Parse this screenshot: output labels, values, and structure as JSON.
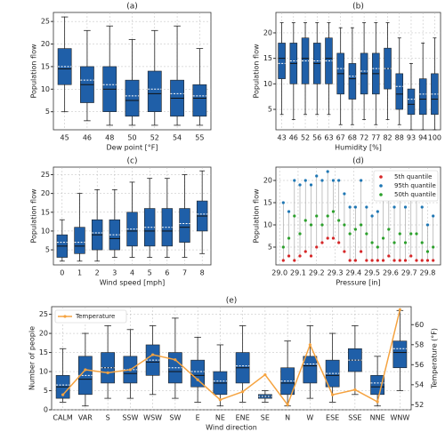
{
  "chart_data": [
    {
      "type": "box",
      "title": "(a)",
      "xlabel": "Dew point [°F]",
      "ylabel": "Population flow",
      "grid": true,
      "color": "#1f5fa8",
      "categories": [
        "45",
        "46",
        "48",
        "50",
        "52",
        "54",
        "55"
      ],
      "whisker_low": [
        5,
        3,
        2,
        2,
        2,
        2,
        2
      ],
      "q1": [
        11,
        7,
        5,
        4,
        5,
        4,
        4
      ],
      "median": [
        14.5,
        11,
        10,
        7.5,
        9,
        8,
        8
      ],
      "mean": [
        15,
        12,
        11,
        8.5,
        10,
        9,
        8.5
      ],
      "q3": [
        19,
        15,
        15,
        12,
        14,
        12,
        11
      ],
      "whisker_high": [
        26,
        23,
        24,
        21,
        23,
        24,
        19
      ],
      "ylim": [
        1,
        27
      ],
      "yticks": [
        5,
        10,
        15,
        20,
        25
      ]
    },
    {
      "type": "box",
      "title": "(b)",
      "xlabel": "Humidity [%]",
      "ylabel": "Population flow",
      "grid": true,
      "color": "#1f5fa8",
      "categories": [
        "43",
        "46",
        "52",
        "56",
        "63",
        "67",
        "68",
        "72",
        "77",
        "82",
        "88",
        "93",
        "94",
        "100"
      ],
      "whisker_low": [
        4,
        3,
        4,
        4,
        4,
        2,
        2,
        3,
        2,
        3,
        2,
        1,
        1,
        1
      ],
      "q1": [
        11,
        10,
        10,
        10,
        10,
        8,
        7,
        8,
        8,
        9,
        5,
        4,
        4,
        4
      ],
      "median": [
        15,
        14,
        15,
        14,
        15,
        12,
        11,
        12,
        12,
        13,
        8,
        6,
        7,
        7
      ],
      "mean": [
        14,
        14.5,
        14.5,
        14.5,
        14.5,
        13,
        11.5,
        12.5,
        13,
        13,
        9.5,
        7,
        8,
        8
      ],
      "q3": [
        18,
        18,
        19,
        18,
        19,
        16,
        14,
        16,
        16,
        17,
        12,
        9,
        11,
        12
      ],
      "whisker_high": [
        22,
        22,
        22,
        22,
        22,
        21,
        21,
        22,
        22,
        22,
        19,
        14,
        18,
        19
      ],
      "ylim": [
        1,
        24
      ],
      "yticks": [
        5,
        10,
        15,
        20
      ]
    },
    {
      "type": "box",
      "title": "(c)",
      "xlabel": "Wind speed [mph]",
      "ylabel": "Population flow",
      "grid": true,
      "color": "#1f5fa8",
      "categories": [
        "0",
        "1",
        "2",
        "3",
        "4",
        "5",
        "6",
        "7",
        "8"
      ],
      "whisker_low": [
        2,
        2,
        2,
        3,
        3,
        3,
        3,
        3,
        4
      ],
      "q1": [
        3,
        4,
        5,
        5,
        6,
        6,
        6,
        7,
        10
      ],
      "median": [
        6,
        6,
        9,
        8,
        10,
        10,
        10,
        11,
        14
      ],
      "mean": [
        7,
        7,
        9.5,
        9,
        10.5,
        11,
        11,
        12,
        14.5
      ],
      "q3": [
        9,
        11,
        13,
        13,
        15,
        16,
        16,
        16,
        18
      ],
      "whisker_high": [
        13,
        20,
        21,
        21,
        23,
        24,
        24,
        25,
        26
      ],
      "ylim": [
        1,
        27
      ],
      "yticks": [
        5,
        10,
        15,
        20,
        25
      ]
    },
    {
      "type": "scatter",
      "title": "(d)",
      "xlabel": "Pressure [in]",
      "ylabel": "Population flow",
      "grid": true,
      "legend": "upper right",
      "x": [
        29.02,
        29.05,
        29.08,
        29.11,
        29.14,
        29.17,
        29.2,
        29.23,
        29.26,
        29.29,
        29.32,
        29.35,
        29.38,
        29.41,
        29.44,
        29.47,
        29.5,
        29.53,
        29.56,
        29.59,
        29.62,
        29.65,
        29.68,
        29.71,
        29.74,
        29.77,
        29.8,
        29.83
      ],
      "series": [
        {
          "name": "5th quantile",
          "color": "#d62728",
          "values": [
            2,
            3,
            2,
            3,
            4,
            3,
            5,
            6,
            7,
            7,
            6,
            4,
            2,
            2,
            4,
            2,
            2,
            2,
            2,
            3,
            2,
            2,
            2,
            3,
            2,
            2,
            2,
            2
          ]
        },
        {
          "name": "95th quantile",
          "color": "#1f77b4",
          "values": [
            15,
            13,
            20,
            19,
            20,
            19,
            21,
            20,
            22,
            20,
            20,
            17,
            14,
            14,
            20,
            14,
            12,
            13,
            16,
            19,
            14,
            20,
            14,
            18,
            20,
            14,
            10,
            12
          ]
        },
        {
          "name": "50th quantile",
          "color": "#2ca02c",
          "values": [
            5,
            7,
            12,
            8,
            11,
            10,
            12,
            10,
            12,
            13,
            11,
            10,
            8,
            9,
            10,
            8,
            6,
            5,
            7,
            9,
            6,
            8,
            6,
            8,
            8,
            6,
            4,
            5
          ]
        }
      ],
      "xlim": [
        28.98,
        29.87
      ],
      "xticks": [
        {
          "value": 29.0,
          "label": "29.0"
        },
        29.1,
        29.2,
        29.3,
        29.4,
        29.5,
        29.6,
        29.7,
        29.8
      ],
      "ylim": [
        1,
        23
      ],
      "yticks": [
        5,
        10,
        15,
        20
      ]
    },
    {
      "type": "box",
      "title": "(e)",
      "xlabel": "Wind direction",
      "ylabel": "Number of people",
      "y2label": "Temperature (°F)",
      "grid": true,
      "color": "#1f5fa8",
      "legend": "upper left",
      "categories": [
        "CALM",
        "VAR",
        "S",
        "SSW",
        "WSW",
        "SW",
        "E",
        "NE",
        "ENE",
        "SE",
        "N",
        "W",
        "ESE",
        "SSE",
        "NNE",
        "WNW"
      ],
      "whisker_low": [
        2,
        1,
        3,
        3,
        4,
        3,
        2,
        1,
        2,
        2,
        1,
        3,
        2,
        4,
        1,
        5
      ],
      "q1": [
        3,
        4,
        7,
        7,
        9,
        7,
        6,
        4,
        7,
        3,
        4,
        7,
        6,
        10,
        4,
        11
      ],
      "median": [
        6,
        8,
        11,
        9.5,
        12.5,
        10,
        9,
        7,
        11,
        3.5,
        7,
        11.5,
        9,
        13,
        6,
        15
      ],
      "mean": [
        6.5,
        9,
        11,
        10.5,
        13,
        11,
        10,
        7.5,
        11.5,
        3.5,
        7.5,
        12,
        9.5,
        13,
        7,
        16
      ],
      "q3": [
        9,
        14,
        15,
        14,
        17,
        15,
        13,
        10,
        15,
        4,
        11,
        14,
        13,
        16,
        9,
        18
      ],
      "whisker_high": [
        16,
        20,
        22,
        21,
        22,
        24,
        19,
        17,
        22,
        5,
        18,
        22,
        20,
        22,
        14,
        26
      ],
      "series": [
        {
          "name": "Temperature",
          "color": "#f5a340",
          "axis": "y2",
          "values": [
            53,
            55.5,
            55.2,
            55.5,
            57,
            56.5,
            54.5,
            52.5,
            53.3,
            55,
            52,
            58,
            53,
            53.5,
            52.3,
            61.5
          ]
        }
      ],
      "ylim": [
        0,
        27
      ],
      "yticks": [
        0,
        5,
        10,
        15,
        20,
        25
      ],
      "y2lim": [
        51.5,
        61.8
      ],
      "y2ticks": [
        52,
        54,
        56,
        58,
        60
      ]
    }
  ]
}
